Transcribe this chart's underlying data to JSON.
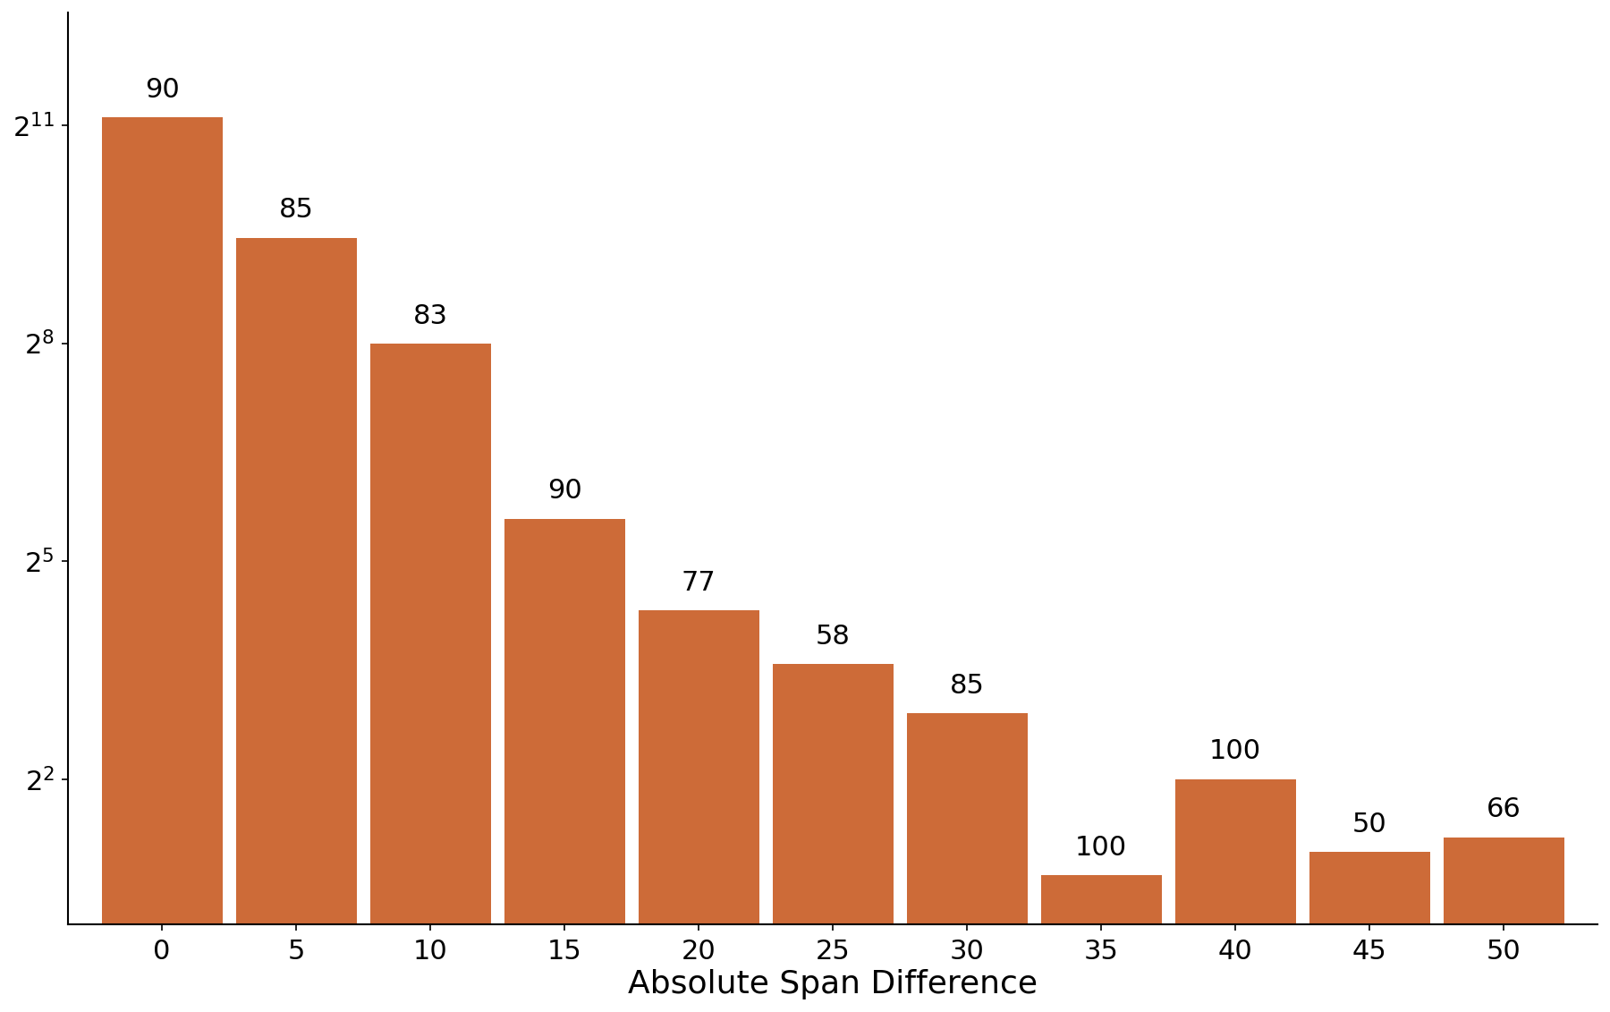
{
  "categories": [
    0,
    5,
    10,
    15,
    20,
    25,
    30,
    35,
    40,
    45,
    50
  ],
  "percentages": [
    90,
    85,
    83,
    90,
    77,
    58,
    85,
    100,
    100,
    50,
    66
  ],
  "bar_heights": [
    2200,
    700,
    255,
    48,
    20,
    12,
    7.5,
    1.6,
    4.0,
    2.0,
    2.3
  ],
  "bar_color": "#cd6b38",
  "xlabel": "Absolute Span Difference",
  "ylabel": "",
  "yticks": [
    4,
    32,
    256,
    2048
  ],
  "ytick_labels": [
    "$2^{2}$",
    "$2^{5}$",
    "$2^{8}$",
    "$2^{11}$"
  ],
  "ylim_bottom": 1.0,
  "ylim_top": 6000,
  "annotation_fontsize": 22,
  "xlabel_fontsize": 26,
  "tick_fontsize": 22,
  "bar_width": 4.5,
  "xlim_left": -3.5,
  "xlim_right": 53.5
}
